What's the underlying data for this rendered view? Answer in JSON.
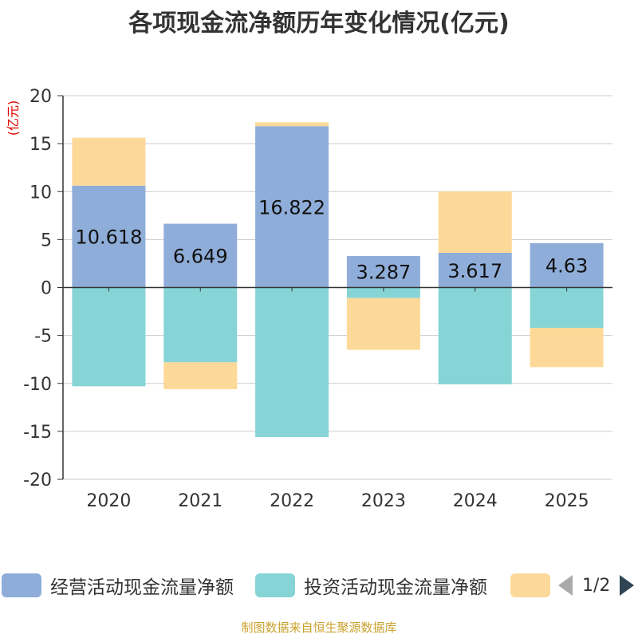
{
  "chart_data": {
    "type": "bar",
    "stacked": true,
    "title": "各项现金流净额历年变化情况(亿元)",
    "ylabel": "(亿元)",
    "xlabel": "",
    "ylim": [
      -20,
      20
    ],
    "yticks": [
      20,
      15,
      10,
      5,
      0,
      -5,
      -10,
      -15,
      -20
    ],
    "categories": [
      "2020",
      "2021",
      "2022",
      "2023",
      "2024",
      "2025"
    ],
    "series": [
      {
        "name": "经营活动现金流量净额",
        "color": "#8fadd9",
        "values": [
          10.618,
          6.649,
          16.822,
          3.287,
          3.617,
          4.63
        ],
        "labels": [
          "10.618",
          "6.649",
          "16.822",
          "3.287",
          "3.617",
          "4.63"
        ]
      },
      {
        "name": "投资活动现金流量净额",
        "color": "#86d4d6",
        "values": [
          -10.3,
          -7.8,
          -15.6,
          -1.1,
          -10.1,
          -4.2
        ]
      },
      {
        "name": "",
        "color": "#fdd999",
        "values": [
          5.0,
          -2.8,
          0.4,
          -5.4,
          6.4,
          -4.1
        ]
      }
    ],
    "legend": "bottom"
  },
  "legend_pager": {
    "text": "1/2"
  },
  "source": "制图数据来自恒生聚源数据库"
}
